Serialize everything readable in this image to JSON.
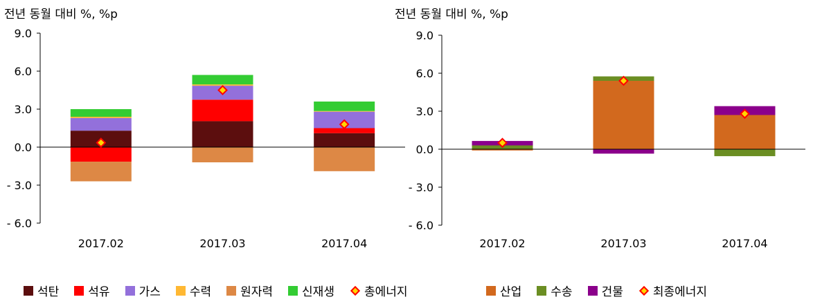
{
  "chart_data": [
    {
      "type": "bar",
      "stacked": true,
      "unit_label": "전년 동월 대비 %, %p",
      "categories": [
        "2017.02",
        "2017.03",
        "2017.04"
      ],
      "ylim": [
        -6.0,
        9.0
      ],
      "yticks": [
        "9.0",
        "6.0",
        "3.0",
        "0.0",
        "- 3.0",
        "- 6.0"
      ],
      "ytick_values": [
        9,
        6,
        3,
        0,
        -3,
        -6
      ],
      "series": [
        {
          "name": "석탄",
          "color": "#5C0E0E",
          "values": [
            1.3,
            2.05,
            1.1
          ]
        },
        {
          "name": "석유",
          "color": "#FF0000",
          "values": [
            -1.15,
            1.7,
            0.4
          ]
        },
        {
          "name": "가스",
          "color": "#9370DB",
          "values": [
            1.0,
            1.1,
            1.3
          ]
        },
        {
          "name": "수력",
          "color": "#FFB833",
          "values": [
            0.1,
            0.1,
            0.05
          ]
        },
        {
          "name": "원자력",
          "color": "#DD8845",
          "values": [
            -1.55,
            -1.2,
            -1.9
          ]
        },
        {
          "name": "신재생",
          "color": "#33CC33",
          "values": [
            0.6,
            0.75,
            0.75
          ]
        }
      ],
      "total": {
        "name": "총에너지",
        "values": [
          0.35,
          4.5,
          1.8
        ]
      }
    },
    {
      "type": "bar",
      "stacked": true,
      "unit_label": "전년 동월 대비 %, %p",
      "categories": [
        "2017.02",
        "2017.03",
        "2017.04"
      ],
      "ylim": [
        -6.0,
        9.0
      ],
      "yticks": [
        "9.0",
        "6.0",
        "3.0",
        "0.0",
        "- 3.0",
        "- 6.0"
      ],
      "ytick_values": [
        9,
        6,
        3,
        0,
        -3,
        -6
      ],
      "series": [
        {
          "name": "산업",
          "color": "#D2691E",
          "values": [
            -0.1,
            5.4,
            2.7
          ]
        },
        {
          "name": "수송",
          "color": "#6B8E23",
          "values": [
            0.3,
            0.35,
            -0.55
          ]
        },
        {
          "name": "건물",
          "color": "#8B008B",
          "values": [
            0.35,
            -0.35,
            0.7
          ]
        }
      ],
      "total": {
        "name": "최종에너지",
        "values": [
          0.5,
          5.4,
          2.8
        ]
      }
    }
  ]
}
